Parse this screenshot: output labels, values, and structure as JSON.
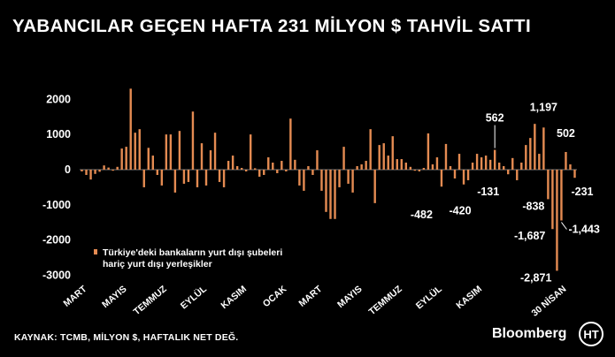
{
  "title": "YABANCILAR GEÇEN HAFTA 231 MİLYON $ TAHVİL SATTI",
  "source": "KAYNAK: TCMB, MİLYON $, HAFTALIK NET DEĞ.",
  "brand": "Bloomberg",
  "logo_text": "HT",
  "colors": {
    "bar": "#E48B52",
    "text": "#FFFFFF",
    "background": "#000000",
    "axis": "#777777"
  },
  "chart_data": {
    "type": "bar",
    "legend": "Türkiye'deki bankaların yurt dışı şubeleri hariç yurt dışı yerleşikler",
    "legend_placement": "bottom-left",
    "ylim": [
      -3000,
      2500
    ],
    "yticks": [
      2000,
      1000,
      0,
      -1000,
      -2000,
      -3000
    ],
    "ytick_labels": [
      "2000",
      "1000",
      "0",
      "-1000",
      "-2000",
      "-3000"
    ],
    "xtick_labels": [
      "MART",
      "MAYIS",
      "TEMMUZ",
      "EYLÜL",
      "KASIM",
      "OCAK",
      "MART",
      "MAYIS",
      "TEMMUZ",
      "EYLÜL",
      "KASIM",
      "30 NİSAN"
    ],
    "xtick_index": [
      0,
      9,
      18,
      27,
      36,
      45,
      53,
      62,
      71,
      80,
      89,
      108
    ],
    "values": [
      -50,
      -150,
      -280,
      -120,
      -60,
      120,
      60,
      -30,
      80,
      600,
      650,
      2300,
      1050,
      1150,
      -500,
      620,
      400,
      -150,
      -450,
      1000,
      1000,
      -650,
      1100,
      -400,
      -350,
      1650,
      -500,
      750,
      -450,
      550,
      1050,
      -350,
      -500,
      250,
      400,
      100,
      50,
      -50,
      1000,
      40,
      -200,
      -150,
      350,
      200,
      -100,
      250,
      -50,
      1450,
      280,
      -450,
      -600,
      100,
      -150,
      550,
      -600,
      -1200,
      -1400,
      -1400,
      -500,
      650,
      -400,
      -650,
      100,
      150,
      250,
      1150,
      -950,
      700,
      750,
      400,
      950,
      300,
      300,
      200,
      80,
      -30,
      -50,
      50,
      1030,
      150,
      350,
      -482,
      730,
      100,
      -250,
      450,
      -420,
      -300,
      200,
      450,
      350,
      400,
      280,
      562,
      200,
      100,
      -131,
      330,
      -300,
      200,
      700,
      900,
      1300,
      450,
      1197,
      -838,
      -1687,
      -2871,
      -1443,
      502,
      150,
      -231
    ],
    "annotations": [
      {
        "index": 81,
        "value": -482,
        "label": "-482"
      },
      {
        "index": 86,
        "value": -420,
        "label": "-420"
      },
      {
        "index": 93,
        "value": 562,
        "label": "562"
      },
      {
        "index": 96,
        "value": -131,
        "label": "-131"
      },
      {
        "index": 104,
        "value": 1197,
        "label": "1,197"
      },
      {
        "index": 105,
        "value": -838,
        "label": "-838"
      },
      {
        "index": 106,
        "value": -1687,
        "label": "-1,687"
      },
      {
        "index": 107,
        "value": -2871,
        "label": "-2,871"
      },
      {
        "index": 108,
        "value": -1443,
        "label": "-1,443"
      },
      {
        "index": 109,
        "value": 502,
        "label": "502"
      },
      {
        "index": 111,
        "value": -231,
        "label": "-231"
      }
    ]
  }
}
